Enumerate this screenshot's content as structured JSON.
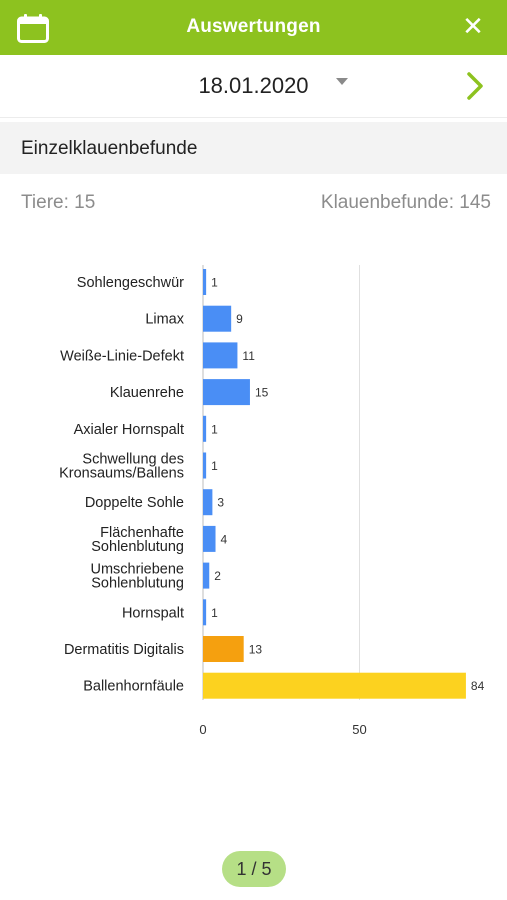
{
  "header": {
    "title": "Auswertungen",
    "calendar_icon": "calendar-icon",
    "close_icon": "close-icon",
    "accent_color": "#8dc21f"
  },
  "date_bar": {
    "date": "18.01.2020",
    "dropdown_icon": "caret-down-icon",
    "next_icon": "chevron-right-icon"
  },
  "section": {
    "title": "Einzelklauenbefunde"
  },
  "stats": {
    "animals_label": "Tiere: 15",
    "findings_label": "Klauenbefunde: 145"
  },
  "chart_data": {
    "type": "bar",
    "orientation": "horizontal",
    "categories": [
      "Sohlengeschwür",
      "Limax",
      "Weiße-Linie-Defekt",
      "Klauenrehe",
      "Axialer Hornspalt",
      "Schwellung des Kronsaums/Ballens",
      "Doppelte Sohle",
      "Flächenhafte Sohlenblutung",
      "Umschriebene Sohlenblutung",
      "Hornspalt",
      "Dermatitis Digitalis",
      "Ballenhornfäule"
    ],
    "category_lines": [
      [
        "Sohlengeschwür"
      ],
      [
        "Limax"
      ],
      [
        "Weiße-Linie-Defekt"
      ],
      [
        "Klauenrehe"
      ],
      [
        "Axialer Hornspalt"
      ],
      [
        "Schwellung des",
        "Kronsaums/Ballens"
      ],
      [
        "Doppelte Sohle"
      ],
      [
        "Flächenhafte",
        "Sohlenblutung"
      ],
      [
        "Umschriebene",
        "Sohlenblutung"
      ],
      [
        "Hornspalt"
      ],
      [
        "Dermatitis Digitalis"
      ],
      [
        "Ballenhornfäule"
      ]
    ],
    "values": [
      1,
      9,
      11,
      15,
      1,
      1,
      3,
      4,
      2,
      1,
      13,
      84
    ],
    "colors": [
      "#4a8ef5",
      "#4a8ef5",
      "#4a8ef5",
      "#4a8ef5",
      "#4a8ef5",
      "#4a8ef5",
      "#4a8ef5",
      "#4a8ef5",
      "#4a8ef5",
      "#4a8ef5",
      "#f5a00f",
      "#fcd21f"
    ],
    "xticks": [
      0,
      50
    ],
    "xlim": [
      0,
      100
    ],
    "grid": true,
    "title": "",
    "xlabel": "",
    "ylabel": ""
  },
  "pager": {
    "label": "1 / 5"
  }
}
